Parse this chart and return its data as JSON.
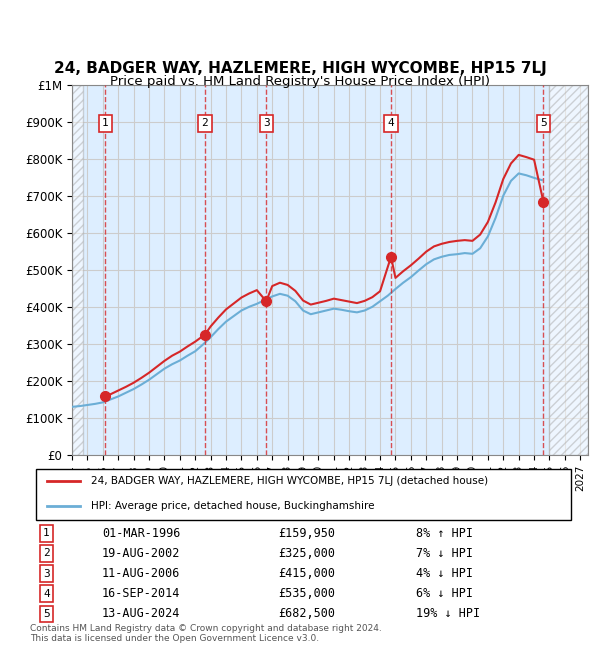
{
  "title": "24, BADGER WAY, HAZLEMERE, HIGH WYCOMBE, HP15 7LJ",
  "subtitle": "Price paid vs. HM Land Registry's House Price Index (HPI)",
  "title_fontsize": 11,
  "subtitle_fontsize": 9.5,
  "xlabel": "",
  "ylabel": "",
  "ylim": [
    0,
    1000000
  ],
  "xlim_start": 1994.0,
  "xlim_end": 2027.5,
  "yticks": [
    0,
    100000,
    200000,
    300000,
    400000,
    500000,
    600000,
    700000,
    800000,
    900000,
    1000000
  ],
  "ytick_labels": [
    "£0",
    "£100K",
    "£200K",
    "£300K",
    "£400K",
    "£500K",
    "£600K",
    "£700K",
    "£800K",
    "£900K",
    "£1M"
  ],
  "xticks": [
    1994,
    1995,
    1996,
    1997,
    1998,
    1999,
    2000,
    2001,
    2002,
    2003,
    2004,
    2005,
    2006,
    2007,
    2008,
    2009,
    2010,
    2011,
    2012,
    2013,
    2014,
    2015,
    2016,
    2017,
    2018,
    2019,
    2020,
    2021,
    2022,
    2023,
    2024,
    2025,
    2026,
    2027
  ],
  "hpi_color": "#6baed6",
  "sale_color": "#d62728",
  "hatch_color": "#bbbbbb",
  "bg_color": "#ddeeff",
  "grid_color": "#cccccc",
  "sales": [
    {
      "num": 1,
      "year": 1996.17,
      "price": 159950,
      "date": "01-MAR-1996",
      "hpi_diff": "8% ↑ HPI"
    },
    {
      "num": 2,
      "year": 2002.63,
      "price": 325000,
      "date": "19-AUG-2002",
      "hpi_diff": "7% ↓ HPI"
    },
    {
      "num": 3,
      "year": 2006.61,
      "price": 415000,
      "date": "11-AUG-2006",
      "hpi_diff": "4% ↓ HPI"
    },
    {
      "num": 4,
      "year": 2014.71,
      "price": 535000,
      "date": "16-SEP-2014",
      "hpi_diff": "6% ↓ HPI"
    },
    {
      "num": 5,
      "year": 2024.61,
      "price": 682500,
      "date": "13-AUG-2024",
      "hpi_diff": "19% ↓ HPI"
    }
  ],
  "hpi_line": {
    "years": [
      1994.0,
      1994.5,
      1995.0,
      1995.5,
      1996.0,
      1996.5,
      1997.0,
      1997.5,
      1998.0,
      1998.5,
      1999.0,
      1999.5,
      2000.0,
      2000.5,
      2001.0,
      2001.5,
      2002.0,
      2002.5,
      2003.0,
      2003.5,
      2004.0,
      2004.5,
      2005.0,
      2005.5,
      2006.0,
      2006.5,
      2007.0,
      2007.5,
      2008.0,
      2008.5,
      2009.0,
      2009.5,
      2010.0,
      2010.5,
      2011.0,
      2011.5,
      2012.0,
      2012.5,
      2013.0,
      2013.5,
      2014.0,
      2014.5,
      2015.0,
      2015.5,
      2016.0,
      2016.5,
      2017.0,
      2017.5,
      2018.0,
      2018.5,
      2019.0,
      2019.5,
      2020.0,
      2020.5,
      2021.0,
      2021.5,
      2022.0,
      2022.5,
      2023.0,
      2023.5,
      2024.0,
      2024.5
    ],
    "values": [
      130000,
      132000,
      135000,
      138000,
      142000,
      150000,
      158000,
      168000,
      178000,
      190000,
      203000,
      218000,
      233000,
      245000,
      255000,
      268000,
      280000,
      298000,
      318000,
      340000,
      360000,
      375000,
      390000,
      400000,
      408000,
      418000,
      428000,
      435000,
      430000,
      415000,
      390000,
      380000,
      385000,
      390000,
      395000,
      392000,
      388000,
      385000,
      390000,
      400000,
      415000,
      430000,
      448000,
      465000,
      480000,
      498000,
      515000,
      528000,
      535000,
      540000,
      542000,
      545000,
      543000,
      558000,
      590000,
      640000,
      700000,
      740000,
      760000,
      755000,
      748000,
      742000
    ]
  },
  "sale_line": {
    "years": [
      1994.0,
      1994.5,
      1995.0,
      1995.5,
      1996.17,
      1996.5,
      1997.0,
      1997.5,
      1998.0,
      1998.5,
      1999.0,
      1999.5,
      2000.0,
      2000.5,
      2001.0,
      2001.5,
      2002.0,
      2002.63,
      2003.0,
      2003.5,
      2004.0,
      2004.5,
      2005.0,
      2005.5,
      2006.0,
      2006.61,
      2007.0,
      2007.5,
      2008.0,
      2008.5,
      2009.0,
      2009.5,
      2010.0,
      2010.5,
      2011.0,
      2011.5,
      2012.0,
      2012.5,
      2013.0,
      2013.5,
      2014.0,
      2014.71,
      2015.0,
      2015.5,
      2016.0,
      2016.5,
      2017.0,
      2017.5,
      2018.0,
      2018.5,
      2019.0,
      2019.5,
      2020.0,
      2020.5,
      2021.0,
      2021.5,
      2022.0,
      2022.5,
      2023.0,
      2023.5,
      2024.0,
      2024.61
    ],
    "values": [
      null,
      null,
      null,
      null,
      159950,
      164000,
      174000,
      184000,
      195000,
      208000,
      222000,
      238000,
      254000,
      268000,
      279000,
      293000,
      306000,
      325000,
      347000,
      371000,
      393000,
      409000,
      425000,
      436000,
      445000,
      415000,
      456000,
      465000,
      459000,
      443000,
      417000,
      406000,
      411000,
      416000,
      422000,
      418000,
      414000,
      410000,
      416000,
      426000,
      442000,
      535000,
      478000,
      496000,
      512000,
      530000,
      549000,
      563000,
      570000,
      575000,
      578000,
      580000,
      578000,
      595000,
      629000,
      682000,
      745000,
      787000,
      810000,
      804000,
      797000,
      682500
    ]
  },
  "legend_label_sale": "24, BADGER WAY, HAZLEMERE, HIGH WYCOMBE, HP15 7LJ (detached house)",
  "legend_label_hpi": "HPI: Average price, detached house, Buckinghamshire",
  "footnote": "Contains HM Land Registry data © Crown copyright and database right 2024.\nThis data is licensed under the Open Government Licence v3.0.",
  "hatch_end_year": 1994.7,
  "hatch_start_year2": 2025.0
}
